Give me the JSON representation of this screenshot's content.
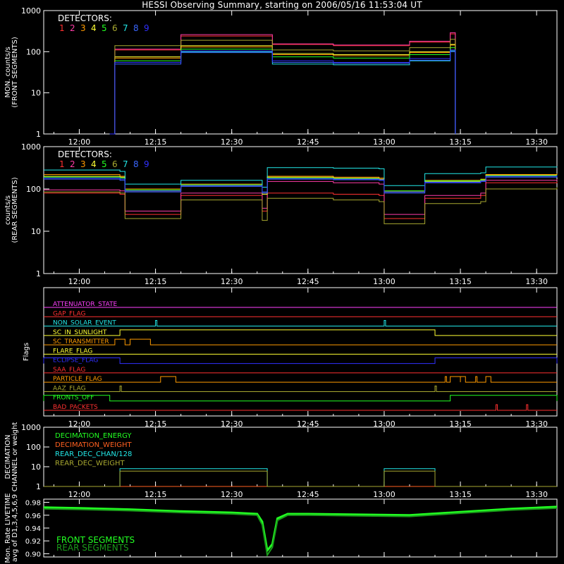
{
  "title": "HESSI Observing Summary, starting on 2006/05/16 11:53:04 UT",
  "x_ticks": [
    "12:00",
    "12:15",
    "12:30",
    "12:45",
    "13:00",
    "13:15",
    "13:30"
  ],
  "detector_colors": [
    "#ff3030",
    "#ff3ca8",
    "#ff9a00",
    "#ffff33",
    "#22ff22",
    "#a8a830",
    "#22e8e8",
    "#3a66ff",
    "#3030ff"
  ],
  "flag_colors": {
    "ATTENUATOR_STATE": "#ff40ff",
    "GAP_FLAG": "#ff3030",
    "NON_SOLAR_EVENT": "#22e8e8",
    "SC_IN_SUNLIGHT": "#ffff33",
    "SC_TRANSMITTER": "#ff9a00",
    "FLARE_FLAG": "#ffff33",
    "ECLIPSE_FLAG": "#3030ff",
    "SAA_FLAG": "#ff3030",
    "PARTICLE_FLAG": "#ff9a00",
    "AAZ_FLAG": "#a8a830",
    "FRONTS_OFF": "#22ff22",
    "BAD_PACKETS": "#ff3030"
  },
  "chart_data": [
    {
      "type": "line",
      "id": "front",
      "title": "HESSI Observing Summary, starting on 2006/05/16 11:53:04 UT",
      "ylabel": "MON. counts/s",
      "ylabel2": "(FRONT SEGMENTS)",
      "yscale": "log",
      "ylim": [
        1,
        1000
      ],
      "y_ticks": [
        "1",
        "10",
        "100",
        "1000"
      ],
      "x_range": [
        "11:53",
        "13:34"
      ],
      "x_ticks": [
        "12:00",
        "12:15",
        "12:30",
        "12:45",
        "13:00",
        "13:15",
        "13:30"
      ],
      "legend_title": "DETECTORS:",
      "legend_labels": [
        "1",
        "2",
        "3",
        "4",
        "5",
        "6",
        "7",
        "8",
        "9"
      ],
      "legend_position": "top-left",
      "series": [
        {
          "name": "1",
          "x": [
            "12:06",
            "12:07",
            "12:20",
            "12:38",
            "12:50",
            "13:05",
            "13:13",
            "13:14"
          ],
          "y": [
            1,
            110,
            240,
            150,
            140,
            170,
            270,
            1
          ]
        },
        {
          "name": "2",
          "x": [
            "12:06",
            "12:07",
            "12:20",
            "12:38",
            "12:50",
            "13:05",
            "13:13",
            "13:14"
          ],
          "y": [
            1,
            115,
            260,
            155,
            145,
            180,
            290,
            1
          ]
        },
        {
          "name": "3",
          "x": [
            "12:06",
            "12:07",
            "12:20",
            "12:38",
            "12:50",
            "13:05",
            "13:13",
            "13:14"
          ],
          "y": [
            1,
            70,
            130,
            85,
            80,
            95,
            145,
            1
          ]
        },
        {
          "name": "4",
          "x": [
            "12:06",
            "12:07",
            "12:20",
            "12:38",
            "12:50",
            "13:05",
            "13:13",
            "13:14"
          ],
          "y": [
            1,
            75,
            140,
            90,
            85,
            100,
            150,
            1
          ]
        },
        {
          "name": "5",
          "x": [
            "12:06",
            "12:07",
            "12:20",
            "12:38",
            "12:50",
            "13:05",
            "13:13",
            "13:14"
          ],
          "y": [
            1,
            60,
            115,
            75,
            70,
            85,
            125,
            1
          ]
        },
        {
          "name": "6",
          "x": [
            "12:06",
            "12:07",
            "12:20",
            "12:38",
            "12:50",
            "13:05",
            "13:13",
            "13:14"
          ],
          "y": [
            1,
            140,
            190,
            110,
            105,
            125,
            200,
            1
          ]
        },
        {
          "name": "7",
          "x": [
            "12:06",
            "12:07",
            "12:20",
            "12:38",
            "12:50",
            "13:05",
            "13:13",
            "13:14"
          ],
          "y": [
            1,
            55,
            100,
            50,
            48,
            60,
            105,
            1
          ]
        },
        {
          "name": "8",
          "x": [
            "12:06",
            "12:07",
            "12:20",
            "12:38",
            "12:50",
            "13:05",
            "13:13",
            "13:14"
          ],
          "y": [
            1,
            50,
            95,
            55,
            52,
            62,
            100,
            1
          ]
        },
        {
          "name": "9",
          "x": [
            "12:06",
            "12:07",
            "12:20",
            "12:38",
            "12:50",
            "13:05",
            "13:13",
            "13:14"
          ],
          "y": [
            1,
            55,
            105,
            60,
            55,
            68,
            110,
            1
          ]
        }
      ]
    },
    {
      "type": "line",
      "id": "rear",
      "ylabel": "counts/s",
      "ylabel2": "(REAR SEGMENTS)",
      "yscale": "log",
      "ylim": [
        1,
        1000
      ],
      "y_ticks": [
        "1",
        "10",
        "100",
        "1000"
      ],
      "x_range": [
        "11:53",
        "13:34"
      ],
      "x_ticks": [
        "12:00",
        "12:15",
        "12:30",
        "12:45",
        "13:00",
        "13:15",
        "13:30"
      ],
      "legend_title": "DETECTORS:",
      "legend_labels": [
        "1",
        "2",
        "3",
        "4",
        "5",
        "6",
        "7",
        "8",
        "9"
      ],
      "legend_position": "top-left",
      "series": [
        {
          "name": "1",
          "x": [
            "11:53",
            "12:08",
            "12:09",
            "12:20",
            "12:36",
            "12:37",
            "12:50",
            "12:59",
            "13:00",
            "13:08",
            "13:19",
            "13:20",
            "13:34"
          ],
          "y": [
            80,
            75,
            25,
            70,
            30,
            80,
            75,
            70,
            20,
            60,
            70,
            140,
            150
          ]
        },
        {
          "name": "2",
          "x": [
            "11:53",
            "12:08",
            "12:09",
            "12:20",
            "12:36",
            "12:37",
            "12:50",
            "12:59",
            "13:00",
            "13:08",
            "13:19",
            "13:20",
            "13:34"
          ],
          "y": [
            95,
            90,
            30,
            80,
            35,
            150,
            140,
            130,
            25,
            70,
            80,
            160,
            170
          ]
        },
        {
          "name": "3",
          "x": [
            "11:53",
            "12:08",
            "12:09",
            "12:20",
            "12:36",
            "12:37",
            "12:50",
            "12:59",
            "13:00",
            "13:08",
            "13:19",
            "13:20",
            "13:34"
          ],
          "y": [
            220,
            200,
            100,
            130,
            80,
            200,
            190,
            180,
            90,
            160,
            170,
            220,
            230
          ]
        },
        {
          "name": "4",
          "x": [
            "11:53",
            "12:08",
            "12:09",
            "12:20",
            "12:36",
            "12:37",
            "12:50",
            "12:59",
            "13:00",
            "13:08",
            "13:19",
            "13:20",
            "13:34"
          ],
          "y": [
            200,
            190,
            90,
            120,
            75,
            190,
            180,
            170,
            85,
            150,
            160,
            210,
            220
          ]
        },
        {
          "name": "5",
          "x": [
            "11:53",
            "12:08",
            "12:09",
            "12:20",
            "12:36",
            "12:37",
            "12:50",
            "12:59",
            "13:00",
            "13:08",
            "13:19",
            "13:20",
            "13:34"
          ],
          "y": [
            190,
            180,
            95,
            125,
            85,
            180,
            175,
            165,
            90,
            155,
            165,
            205,
            215
          ]
        },
        {
          "name": "6",
          "x": [
            "11:53",
            "12:08",
            "12:09",
            "12:20",
            "12:36",
            "12:37",
            "12:50",
            "12:59",
            "13:00",
            "13:08",
            "13:19",
            "13:20",
            "13:34"
          ],
          "y": [
            85,
            80,
            20,
            55,
            18,
            60,
            55,
            50,
            15,
            45,
            50,
            100,
            110
          ]
        },
        {
          "name": "7",
          "x": [
            "11:53",
            "12:08",
            "12:09",
            "12:20",
            "12:36",
            "12:37",
            "12:50",
            "12:59",
            "13:00",
            "13:08",
            "13:19",
            "13:20",
            "13:34"
          ],
          "y": [
            280,
            260,
            130,
            160,
            110,
            320,
            310,
            300,
            120,
            230,
            240,
            330,
            340
          ]
        },
        {
          "name": "8",
          "x": [
            "11:53",
            "12:08",
            "12:09",
            "12:20",
            "12:36",
            "12:37",
            "12:50",
            "12:59",
            "13:00",
            "13:08",
            "13:19",
            "13:20",
            "13:34"
          ],
          "y": [
            170,
            160,
            85,
            115,
            80,
            170,
            165,
            160,
            80,
            140,
            150,
            190,
            200
          ]
        },
        {
          "name": "9",
          "x": [
            "11:53",
            "12:08",
            "12:09",
            "12:20",
            "12:36",
            "12:37",
            "12:50",
            "12:59",
            "13:00",
            "13:08",
            "13:19",
            "13:20",
            "13:34"
          ],
          "y": [
            180,
            170,
            90,
            120,
            85,
            175,
            170,
            165,
            85,
            145,
            155,
            200,
            210
          ]
        }
      ]
    },
    {
      "type": "line",
      "id": "flags",
      "ylabel": "Flags",
      "x_range": [
        "11:53",
        "13:34"
      ],
      "x_ticks": [
        "12:00",
        "12:15",
        "12:30",
        "12:45",
        "13:00",
        "13:15",
        "13:30"
      ],
      "flags": [
        {
          "name": "ATTENUATOR_STATE",
          "on": []
        },
        {
          "name": "GAP_FLAG",
          "on": []
        },
        {
          "name": "NON_SOLAR_EVENT",
          "on": [
            [
              "12:15",
              "12:15"
            ],
            [
              "13:00",
              "13:00"
            ]
          ]
        },
        {
          "name": "SC_IN_SUNLIGHT",
          "on": [
            [
              "12:08",
              "13:10"
            ]
          ]
        },
        {
          "name": "SC_TRANSMITTER",
          "on": [
            [
              "12:07",
              "12:09"
            ],
            [
              "12:10",
              "12:14"
            ]
          ]
        },
        {
          "name": "FLARE_FLAG",
          "on": []
        },
        {
          "name": "ECLIPSE_FLAG",
          "on": [
            [
              "11:53",
              "12:08"
            ],
            [
              "13:10",
              "13:34"
            ]
          ]
        },
        {
          "name": "SAA_FLAG",
          "on": []
        },
        {
          "name": "PARTICLE_FLAG",
          "on": [
            [
              "12:16",
              "12:19"
            ],
            [
              "13:12",
              "13:12"
            ],
            [
              "13:13",
              "13:15"
            ],
            [
              "13:15",
              "13:16"
            ],
            [
              "13:18",
              "13:18"
            ],
            [
              "13:20",
              "13:21"
            ]
          ]
        },
        {
          "name": "AAZ_FLAG",
          "on": [
            [
              "12:08",
              "12:08"
            ],
            [
              "13:10",
              "13:10"
            ]
          ]
        },
        {
          "name": "FRONTS_OFF",
          "on": [
            [
              "11:53",
              "12:06"
            ],
            [
              "13:13",
              "13:34"
            ]
          ]
        },
        {
          "name": "BAD_PACKETS",
          "on": [
            [
              "13:22",
              "13:22"
            ],
            [
              "13:28",
              "13:28"
            ]
          ]
        }
      ]
    },
    {
      "type": "line",
      "id": "decimation",
      "ylabel": "DECIMATION",
      "ylabel2": "CHANNEL or weight",
      "yscale": "log",
      "ylim": [
        1,
        1000
      ],
      "y_ticks": [
        "1",
        "10",
        "100",
        "1000"
      ],
      "x_range": [
        "11:53",
        "13:34"
      ],
      "x_ticks": [
        "12:00",
        "12:15",
        "12:30",
        "12:45",
        "13:00",
        "13:15",
        "13:30"
      ],
      "legend_position": "top-left",
      "legend_labels": [
        "DECIMATION_ENERGY",
        "DECIMATION_WEIGHT",
        "REAR_DEC_CHAN/128",
        "REAR_DEC_WEIGHT"
      ],
      "legend_colors": [
        "#22ff22",
        "#ff6020",
        "#22e8e8",
        "#a8a830"
      ],
      "series": [
        {
          "name": "DECIMATION_ENERGY",
          "x": [
            "11:53",
            "13:34"
          ],
          "y": [
            1,
            1
          ]
        },
        {
          "name": "DECIMATION_WEIGHT",
          "x": [
            "11:53",
            "13:34"
          ],
          "y": [
            1,
            1
          ]
        },
        {
          "name": "REAR_DEC_CHAN/128",
          "x": [
            "11:53",
            "12:08",
            "12:08",
            "12:37",
            "12:37",
            "13:00",
            "13:00",
            "13:10",
            "13:10",
            "13:34"
          ],
          "y": [
            1,
            1,
            8,
            8,
            1,
            1,
            8,
            8,
            1,
            1
          ]
        },
        {
          "name": "REAR_DEC_WEIGHT",
          "x": [
            "11:53",
            "12:08",
            "12:08",
            "12:37",
            "12:37",
            "13:00",
            "13:00",
            "13:10",
            "13:10",
            "13:34"
          ],
          "y": [
            1,
            1,
            6,
            6,
            1,
            1,
            6,
            6,
            1,
            1
          ]
        }
      ]
    },
    {
      "type": "line",
      "id": "livetime",
      "ylabel": "Mon. Rate LIVETIME",
      "ylabel2": "avg of D1,3,4,5,6,9",
      "ylim": [
        0.895,
        0.985
      ],
      "y_ticks": [
        "0.90",
        "0.92",
        "0.94",
        "0.96",
        "0.98"
      ],
      "x_range": [
        "11:53",
        "13:34"
      ],
      "legend_labels": [
        "FRONT SEGMENTS",
        "REAR SEGMENTS"
      ],
      "legend_colors": [
        "#22ff22",
        "#1a9a1a"
      ],
      "legend_position": "bottom-left",
      "series": [
        {
          "name": "FRONT SEGMENTS",
          "x": [
            "11:53",
            "12:00",
            "12:10",
            "12:20",
            "12:30",
            "12:35",
            "12:36",
            "12:37",
            "12:38",
            "12:39",
            "12:41",
            "12:45",
            "12:55",
            "13:05",
            "13:15",
            "13:25",
            "13:34"
          ],
          "y": [
            0.972,
            0.971,
            0.969,
            0.966,
            0.964,
            0.962,
            0.95,
            0.905,
            0.915,
            0.955,
            0.962,
            0.962,
            0.961,
            0.96,
            0.965,
            0.97,
            0.973
          ]
        },
        {
          "name": "REAR SEGMENTS",
          "x": [
            "11:53",
            "12:00",
            "12:10",
            "12:20",
            "12:30",
            "12:35",
            "12:36",
            "12:37",
            "12:38",
            "12:39",
            "12:41",
            "12:45",
            "12:55",
            "13:05",
            "13:15",
            "13:25",
            "13:34"
          ],
          "y": [
            0.97,
            0.969,
            0.967,
            0.964,
            0.962,
            0.96,
            0.945,
            0.898,
            0.91,
            0.952,
            0.96,
            0.96,
            0.959,
            0.958,
            0.963,
            0.968,
            0.971
          ]
        }
      ]
    }
  ]
}
